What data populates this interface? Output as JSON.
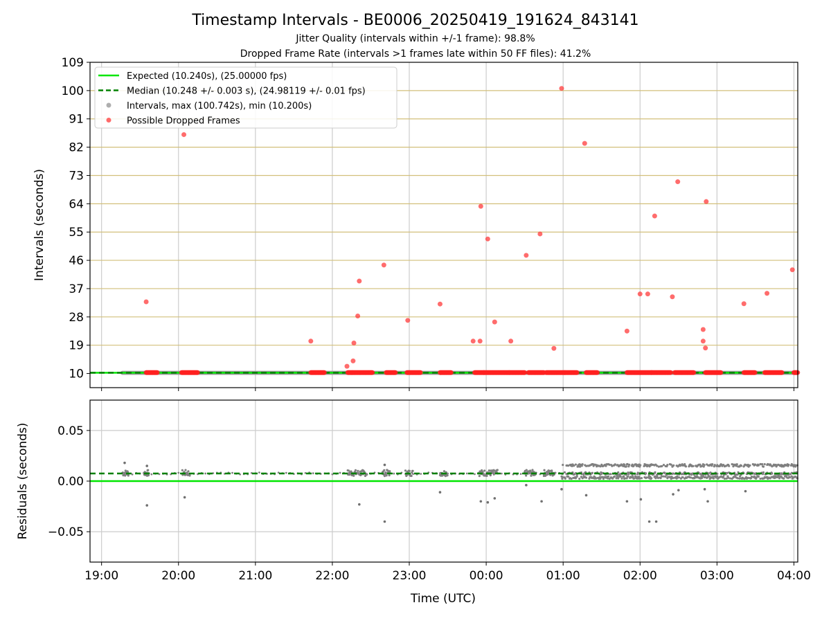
{
  "title": "Timestamp Intervals - BE0006_20250419_191624_843141",
  "subtitle1": "Jitter Quality (intervals within +/-1 frame): 98.8%",
  "subtitle2": "Dropped Frame Rate (intervals >1 frames late within 50 FF files): 41.2%",
  "colors": {
    "expected": "#00e600",
    "median": "#008000",
    "interval": "#808080",
    "dropped": "#ff3333",
    "hgrid_top": "#d2bf7a",
    "grid": "#cccccc"
  },
  "legend": {
    "placement": "upper-left",
    "items": [
      {
        "label": "Expected (10.240s), (25.00000 fps)",
        "kind": "solid-line",
        "color": "#00e600"
      },
      {
        "label": "Median (10.248 +/- 0.003 s), (24.98119 +/- 0.01 fps)",
        "kind": "dashed-line",
        "color": "#008000"
      },
      {
        "label": "Intervals, max (100.742s), min (10.200s)",
        "kind": "dot",
        "color": "#a0a0a0"
      },
      {
        "label": "Possible Dropped Frames",
        "kind": "dot",
        "color": "#ff5050"
      }
    ]
  },
  "chart_data": [
    {
      "type": "scatter",
      "ylabel": "Intervals (seconds)",
      "ylim": [
        5.5,
        109
      ],
      "yticks": [
        "10",
        "19",
        "28",
        "37",
        "46",
        "55",
        "64",
        "73",
        "82",
        "91",
        "100",
        "109"
      ],
      "xlim_hours": [
        18.85,
        28.05
      ],
      "grid": "x and y",
      "expected": 10.24,
      "median": 10.248,
      "interval_band_hours": [
        19.27,
        28.05
      ],
      "dropped_runs": [
        [
          19.58,
          19.73
        ],
        [
          20.04,
          20.25
        ],
        [
          21.72,
          21.9
        ],
        [
          22.2,
          22.52
        ],
        [
          22.7,
          22.82
        ],
        [
          22.97,
          23.15
        ],
        [
          23.4,
          23.55
        ],
        [
          23.85,
          23.97
        ],
        [
          23.97,
          24.3
        ],
        [
          24.3,
          24.5
        ],
        [
          24.55,
          24.75
        ],
        [
          24.78,
          25.02
        ],
        [
          25.02,
          25.18
        ],
        [
          25.3,
          25.45
        ],
        [
          25.83,
          26.15
        ],
        [
          26.15,
          26.4
        ],
        [
          26.45,
          26.7
        ],
        [
          26.85,
          27.05
        ],
        [
          27.35,
          27.5
        ],
        [
          27.62,
          27.85
        ],
        [
          28.0,
          28.05
        ]
      ],
      "dropped_outliers": [
        {
          "time": "19:35",
          "hours": 19.58,
          "value": 32.8
        },
        {
          "time": "20:04",
          "hours": 20.07,
          "value": 86.0
        },
        {
          "time": "21:43",
          "hours": 21.72,
          "value": 20.3
        },
        {
          "time": "22:12",
          "hours": 22.19,
          "value": 12.3
        },
        {
          "time": "22:16",
          "hours": 22.27,
          "value": 14.0
        },
        {
          "time": "22:17",
          "hours": 22.28,
          "value": 19.7
        },
        {
          "time": "22:20",
          "hours": 22.33,
          "value": 28.3
        },
        {
          "time": "22:21",
          "hours": 22.35,
          "value": 39.4
        },
        {
          "time": "22:40",
          "hours": 22.67,
          "value": 44.5
        },
        {
          "time": "22:59",
          "hours": 22.98,
          "value": 26.9
        },
        {
          "time": "23:24",
          "hours": 23.4,
          "value": 32.1
        },
        {
          "time": "23:50",
          "hours": 23.83,
          "value": 20.3
        },
        {
          "time": "23:55",
          "hours": 23.92,
          "value": 20.3
        },
        {
          "time": "23:56",
          "hours": 23.93,
          "value": 63.2
        },
        {
          "time": "00:01",
          "hours": 24.02,
          "value": 52.8
        },
        {
          "time": "00:06",
          "hours": 24.11,
          "value": 26.4
        },
        {
          "time": "00:19",
          "hours": 24.32,
          "value": 20.3
        },
        {
          "time": "00:31",
          "hours": 24.52,
          "value": 47.6
        },
        {
          "time": "00:42",
          "hours": 24.7,
          "value": 54.4
        },
        {
          "time": "00:53",
          "hours": 24.88,
          "value": 18.0
        },
        {
          "time": "00:59",
          "hours": 24.98,
          "value": 100.7
        },
        {
          "time": "01:17",
          "hours": 25.28,
          "value": 83.2
        },
        {
          "time": "01:50",
          "hours": 25.83,
          "value": 23.5
        },
        {
          "time": "02:00",
          "hours": 26.0,
          "value": 35.3
        },
        {
          "time": "02:06",
          "hours": 26.1,
          "value": 35.3
        },
        {
          "time": "02:11",
          "hours": 26.19,
          "value": 60.1
        },
        {
          "time": "02:25",
          "hours": 26.42,
          "value": 34.4
        },
        {
          "time": "02:29",
          "hours": 26.49,
          "value": 71.0
        },
        {
          "time": "02:49",
          "hours": 26.82,
          "value": 24.0
        },
        {
          "time": "02:49",
          "hours": 26.82,
          "value": 20.3
        },
        {
          "time": "02:51",
          "hours": 26.85,
          "value": 18.1
        },
        {
          "time": "02:52",
          "hours": 26.86,
          "value": 64.7
        },
        {
          "time": "03:21",
          "hours": 27.35,
          "value": 32.2
        },
        {
          "time": "03:39",
          "hours": 27.65,
          "value": 35.5
        },
        {
          "time": "03:59",
          "hours": 27.98,
          "value": 43.0
        }
      ]
    },
    {
      "type": "scatter",
      "xlabel": "Time (UTC)",
      "ylabel": "Residuals (seconds)",
      "ylim": [
        -0.08,
        0.08
      ],
      "yticks": [
        "0.05",
        "0.00",
        "−0.05"
      ],
      "xticks": [
        "19:00",
        "20:00",
        "21:00",
        "22:00",
        "23:00",
        "00:00",
        "01:00",
        "02:00",
        "03:00",
        "04:00"
      ],
      "xlim_hours": [
        18.85,
        28.05
      ],
      "grid": "x and y",
      "expected_residual": 0.0,
      "median_residual": 0.0075,
      "residual_clusters": [
        {
          "start": 19.27,
          "end": 19.35,
          "center": 0.008
        },
        {
          "start": 19.55,
          "end": 19.62,
          "center": 0.008
        },
        {
          "start": 20.05,
          "end": 20.15,
          "center": 0.008
        },
        {
          "start": 22.2,
          "end": 22.45,
          "center": 0.008
        },
        {
          "start": 22.65,
          "end": 22.75,
          "center": 0.008
        },
        {
          "start": 22.95,
          "end": 23.05,
          "center": 0.008
        },
        {
          "start": 23.4,
          "end": 23.5,
          "center": 0.008
        },
        {
          "start": 23.9,
          "end": 24.15,
          "center": 0.008
        },
        {
          "start": 24.5,
          "end": 24.65,
          "center": 0.008
        },
        {
          "start": 24.75,
          "end": 24.9,
          "center": 0.008
        }
      ],
      "residual_dense_band": {
        "start": 24.98,
        "end": 28.05,
        "values": [
          0.0035,
          0.0075,
          0.0155
        ]
      },
      "residual_outliers": [
        {
          "hours": 19.3,
          "value": 0.018
        },
        {
          "hours": 19.59,
          "value": 0.015
        },
        {
          "hours": 19.59,
          "value": -0.024
        },
        {
          "hours": 20.08,
          "value": -0.016
        },
        {
          "hours": 22.35,
          "value": -0.023
        },
        {
          "hours": 22.68,
          "value": 0.016
        },
        {
          "hours": 22.68,
          "value": -0.04
        },
        {
          "hours": 23.4,
          "value": -0.011
        },
        {
          "hours": 23.93,
          "value": -0.02
        },
        {
          "hours": 24.02,
          "value": -0.021
        },
        {
          "hours": 24.11,
          "value": -0.017
        },
        {
          "hours": 24.52,
          "value": -0.004
        },
        {
          "hours": 24.72,
          "value": -0.02
        },
        {
          "hours": 24.98,
          "value": -0.008
        },
        {
          "hours": 25.3,
          "value": -0.014
        },
        {
          "hours": 25.83,
          "value": -0.02
        },
        {
          "hours": 26.01,
          "value": -0.018
        },
        {
          "hours": 26.12,
          "value": -0.04
        },
        {
          "hours": 26.21,
          "value": -0.04
        },
        {
          "hours": 26.43,
          "value": -0.013
        },
        {
          "hours": 26.5,
          "value": -0.009
        },
        {
          "hours": 26.84,
          "value": -0.008
        },
        {
          "hours": 26.88,
          "value": -0.02
        },
        {
          "hours": 27.37,
          "value": -0.01
        }
      ]
    }
  ]
}
